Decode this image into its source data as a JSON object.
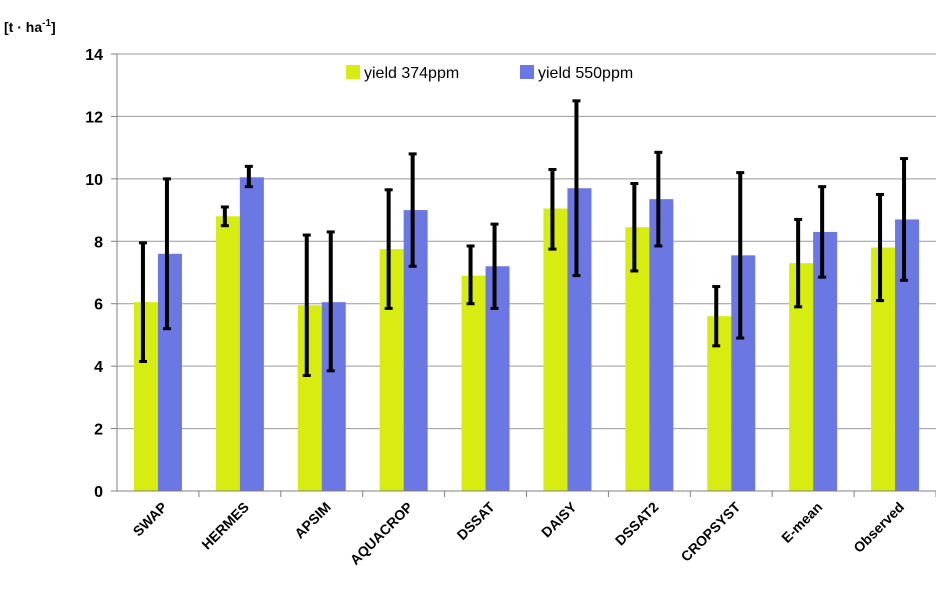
{
  "chart_data": {
    "type": "bar",
    "title": "",
    "xlabel": "",
    "ylabel": "[t · ha-1]",
    "ylabel_parts": {
      "main": "[t · ha",
      "sup": "-1",
      "close": "]"
    },
    "ylim": [
      0,
      14
    ],
    "yticks": [
      0,
      2,
      4,
      6,
      8,
      10,
      12,
      14
    ],
    "grid": true,
    "legend_position": "top-center",
    "categories": [
      "SWAP",
      "HERMES",
      "APSIM",
      "AQUACROP",
      "DSSAT",
      "DAISY",
      "DSSAT2",
      "CROPSYST",
      "E-mean",
      "Observed"
    ],
    "series": [
      {
        "name": "yield 374ppm",
        "color": "#d7ec11",
        "values": [
          6.05,
          8.8,
          5.95,
          7.75,
          6.9,
          9.05,
          8.45,
          5.6,
          7.3,
          7.8
        ],
        "error_low": [
          4.15,
          8.5,
          3.7,
          5.85,
          6.0,
          7.75,
          7.05,
          4.65,
          5.9,
          6.1
        ],
        "error_high": [
          7.95,
          9.1,
          8.2,
          9.65,
          7.85,
          10.3,
          9.85,
          6.55,
          8.7,
          9.5
        ]
      },
      {
        "name": "yield 550ppm",
        "color": "#6b78e4",
        "values": [
          7.6,
          10.05,
          6.05,
          9.0,
          7.2,
          9.7,
          9.35,
          7.55,
          8.3,
          8.7
        ],
        "error_low": [
          5.2,
          9.75,
          3.85,
          7.2,
          5.85,
          6.9,
          7.85,
          4.9,
          6.85,
          6.75
        ],
        "error_high": [
          10.0,
          10.4,
          8.3,
          10.8,
          8.55,
          12.5,
          10.85,
          10.2,
          9.75,
          10.65
        ]
      }
    ]
  }
}
